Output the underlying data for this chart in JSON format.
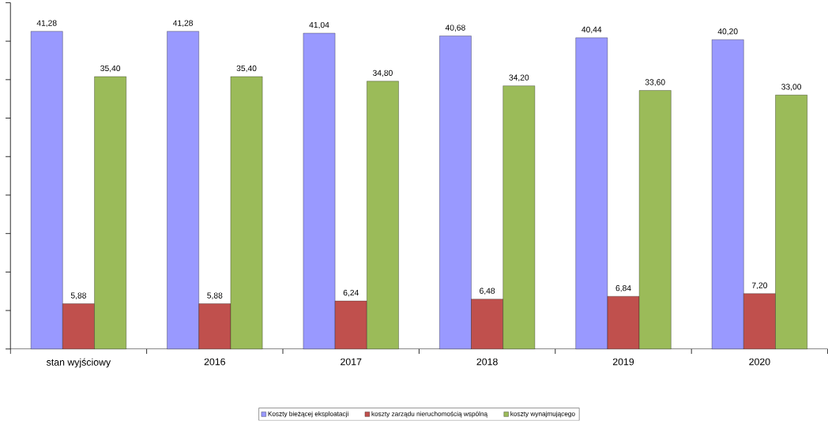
{
  "chart_data": {
    "type": "bar",
    "categories": [
      "stan wyjściowy",
      "2016",
      "2017",
      "2018",
      "2019",
      "2020"
    ],
    "series": [
      {
        "name": "Koszty bieżącej eksploatacji",
        "color": "#9999ff",
        "values": [
          41.28,
          41.28,
          41.04,
          40.68,
          40.44,
          40.2
        ],
        "value_labels": [
          "41,28",
          "41,28",
          "41,04",
          "40,68",
          "40,44",
          "40,20"
        ]
      },
      {
        "name": "koszty zarządu nieruchomością wspólną",
        "color": "#c0504d",
        "values": [
          5.88,
          5.88,
          6.24,
          6.48,
          6.84,
          7.2
        ],
        "value_labels": [
          "5,88",
          "5,88",
          "6,24",
          "6,48",
          "6,84",
          "7,20"
        ]
      },
      {
        "name": "koszty wynajmującego",
        "color": "#9bbb59",
        "values": [
          35.4,
          35.4,
          34.8,
          34.2,
          33.6,
          33.0
        ],
        "value_labels": [
          "35,40",
          "35,40",
          "34,80",
          "34,20",
          "33,60",
          "33,00"
        ]
      }
    ],
    "ylim": [
      0,
      45
    ],
    "yticks": [
      {
        "value": 0,
        "label": null
      },
      {
        "value": 5,
        "label": null
      },
      {
        "value": 10,
        "label": null
      },
      {
        "value": 15,
        "label": null
      },
      {
        "value": 20,
        "label": null
      },
      {
        "value": 25,
        "label": null
      },
      {
        "value": 30,
        "label": null
      },
      {
        "value": 35,
        "label": null
      },
      {
        "value": 40,
        "label": null
      },
      {
        "value": 45,
        "label": null
      }
    ],
    "tick_labels": "x",
    "legend": "bottom",
    "grid": false
  }
}
